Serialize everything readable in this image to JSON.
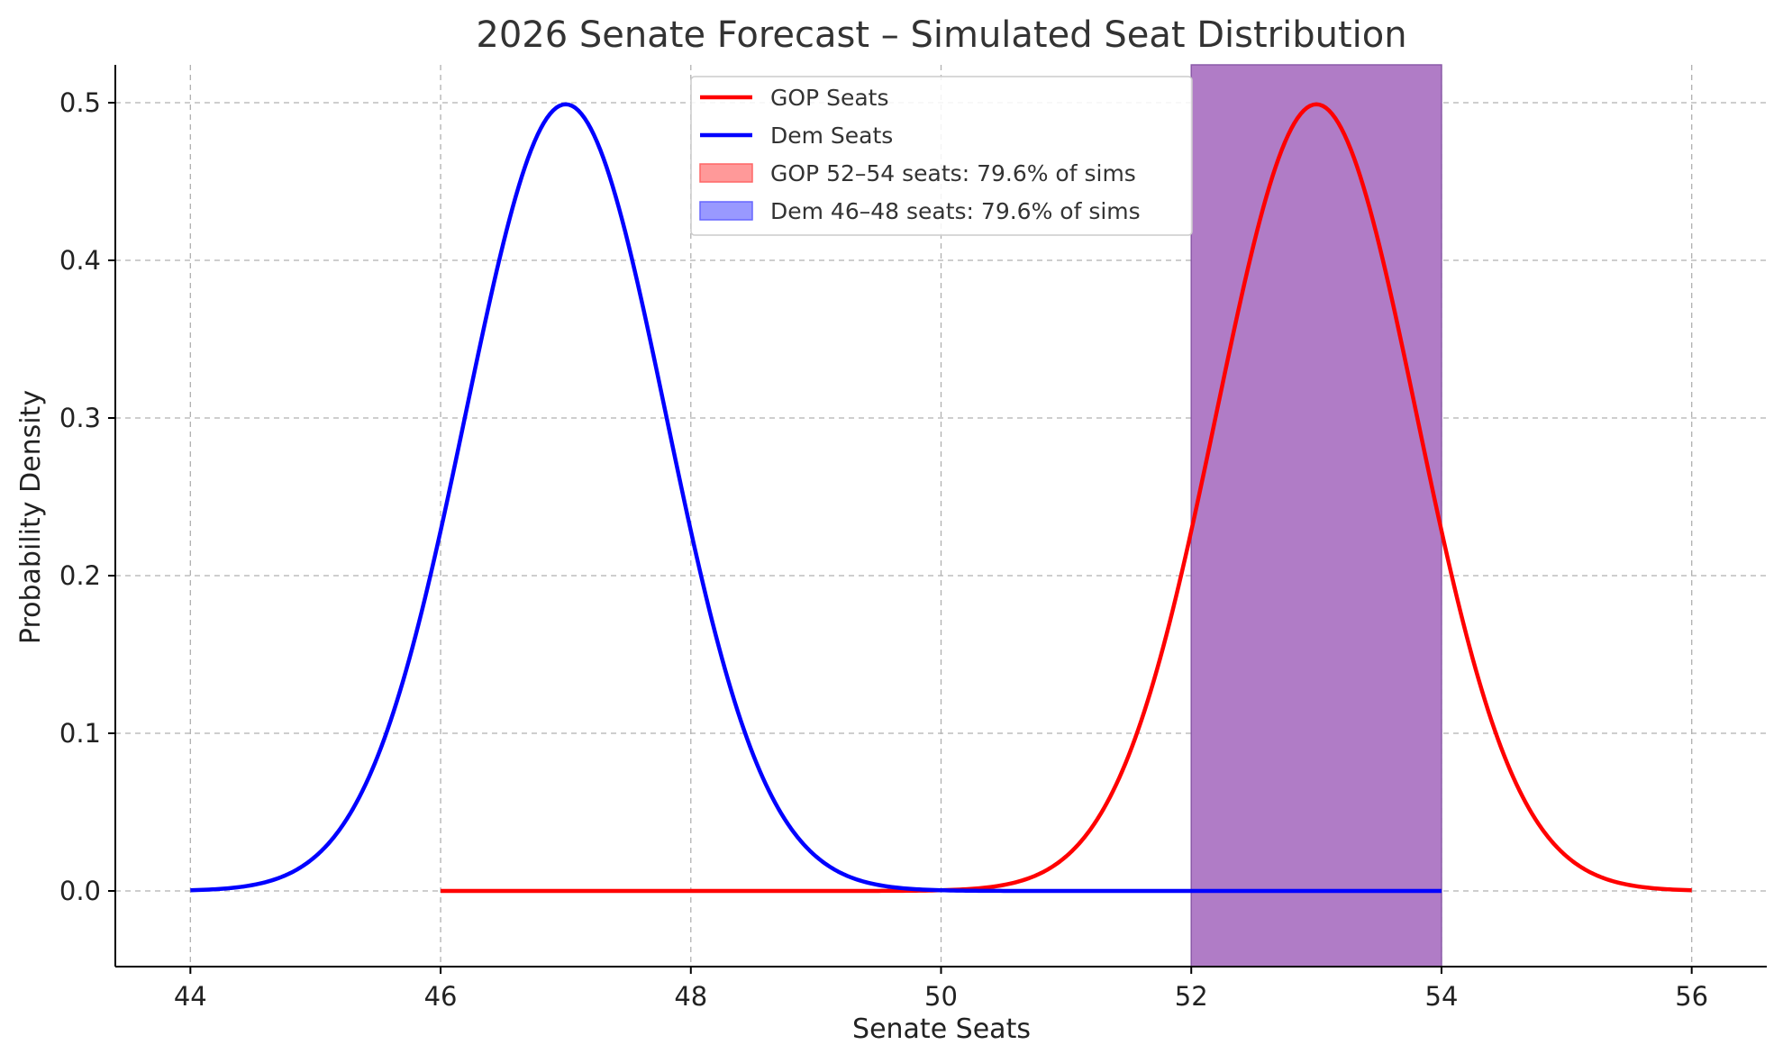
{
  "chart_data": {
    "type": "line",
    "title": "2026 Senate Forecast – Simulated Seat Distribution",
    "xlabel": "Senate Seats",
    "ylabel": "Probability Density",
    "xlim": [
      43.4,
      56.6
    ],
    "ylim": [
      -0.048,
      0.524
    ],
    "xticks": [
      44,
      46,
      48,
      50,
      52,
      54,
      56
    ],
    "yticks": [
      0.0,
      0.1,
      0.2,
      0.3,
      0.4,
      0.5
    ],
    "grid": true,
    "legend_position": "top-center",
    "series": [
      {
        "name": "GOP Seats",
        "color": "#ff0000",
        "mean": 53,
        "sd": 0.8,
        "x_range": [
          46,
          56
        ],
        "peak": 0.499,
        "points": [
          [
            46,
            0.0
          ],
          [
            50,
            0.0
          ],
          [
            51,
            0.02
          ],
          [
            52,
            0.23
          ],
          [
            53,
            0.499
          ],
          [
            54,
            0.23
          ],
          [
            55,
            0.02
          ],
          [
            56,
            0.0
          ]
        ]
      },
      {
        "name": "Dem Seats",
        "color": "#0000ff",
        "mean": 47,
        "sd": 0.8,
        "x_range": [
          44,
          54
        ],
        "peak": 0.499,
        "points": [
          [
            44,
            0.0
          ],
          [
            45,
            0.02
          ],
          [
            46,
            0.23
          ],
          [
            47,
            0.499
          ],
          [
            48,
            0.23
          ],
          [
            49,
            0.02
          ],
          [
            50,
            0.0
          ],
          [
            54,
            0.0
          ]
        ]
      }
    ],
    "shaded_regions": [
      {
        "name": "GOP 52–54 seats: 79.6% of sims",
        "x_start": 52,
        "x_end": 54,
        "fill": "#ff9999",
        "edge": "#ff6666"
      },
      {
        "name": "Dem 46–48 seats: 79.6% of sims",
        "x_start": 46,
        "x_end": 48,
        "fill": "#9999ff",
        "edge": "#6666ff"
      }
    ],
    "rendered_band": {
      "x_start": 52,
      "x_end": 54,
      "fill": "#b07cc6",
      "edge": "#8a5aa8"
    }
  }
}
